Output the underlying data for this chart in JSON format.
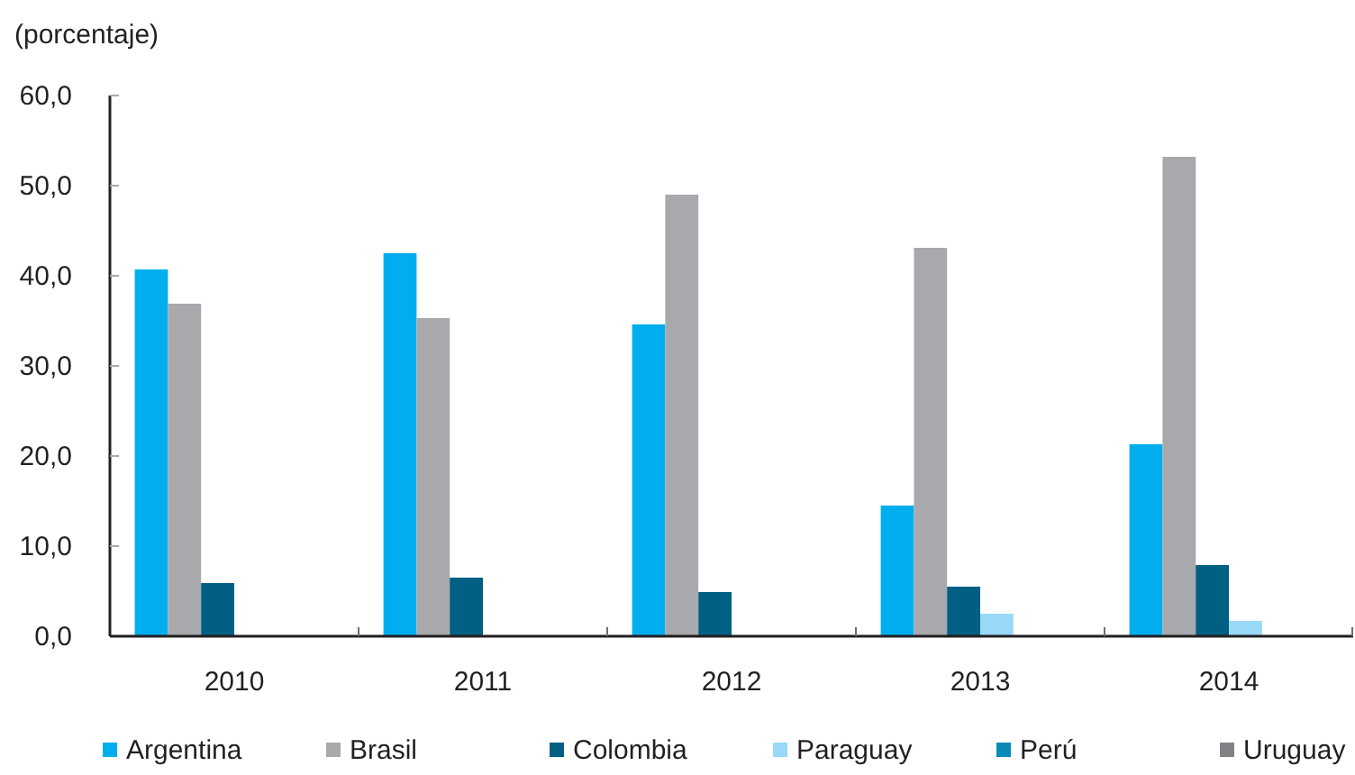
{
  "chart_data": {
    "type": "bar",
    "ylabel": "(porcentaje)",
    "categories": [
      "2010",
      "2011",
      "2012",
      "2013",
      "2014"
    ],
    "series": [
      {
        "name": "Argentina",
        "color": "#00aeef",
        "values": [
          40.7,
          42.5,
          34.6,
          14.5,
          21.3
        ]
      },
      {
        "name": "Brasil",
        "color": "#a7a9ac",
        "values": [
          36.9,
          35.3,
          49.0,
          43.1,
          53.2
        ]
      },
      {
        "name": "Colombia",
        "color": "#005f83",
        "values": [
          5.9,
          6.5,
          4.9,
          5.5,
          7.9
        ]
      },
      {
        "name": "Paraguay",
        "color": "#99d9f7",
        "values": [
          null,
          null,
          null,
          2.5,
          1.7
        ]
      },
      {
        "name": "Perú",
        "color": "#0b8ab8",
        "values": [
          null,
          null,
          null,
          null,
          null
        ]
      },
      {
        "name": "Uruguay",
        "color": "#808285",
        "values": [
          null,
          null,
          null,
          null,
          null
        ]
      }
    ],
    "ylim": [
      0,
      60
    ],
    "yticks": [
      {
        "value": 0,
        "label": "0,0"
      },
      {
        "value": 10,
        "label": "10,0"
      },
      {
        "value": 20,
        "label": "20,0"
      },
      {
        "value": 30,
        "label": "30,0"
      },
      {
        "value": 40,
        "label": "40,0"
      },
      {
        "value": 50,
        "label": "50,0"
      },
      {
        "value": 60,
        "label": "60,0"
      }
    ],
    "legend": "bottom"
  }
}
